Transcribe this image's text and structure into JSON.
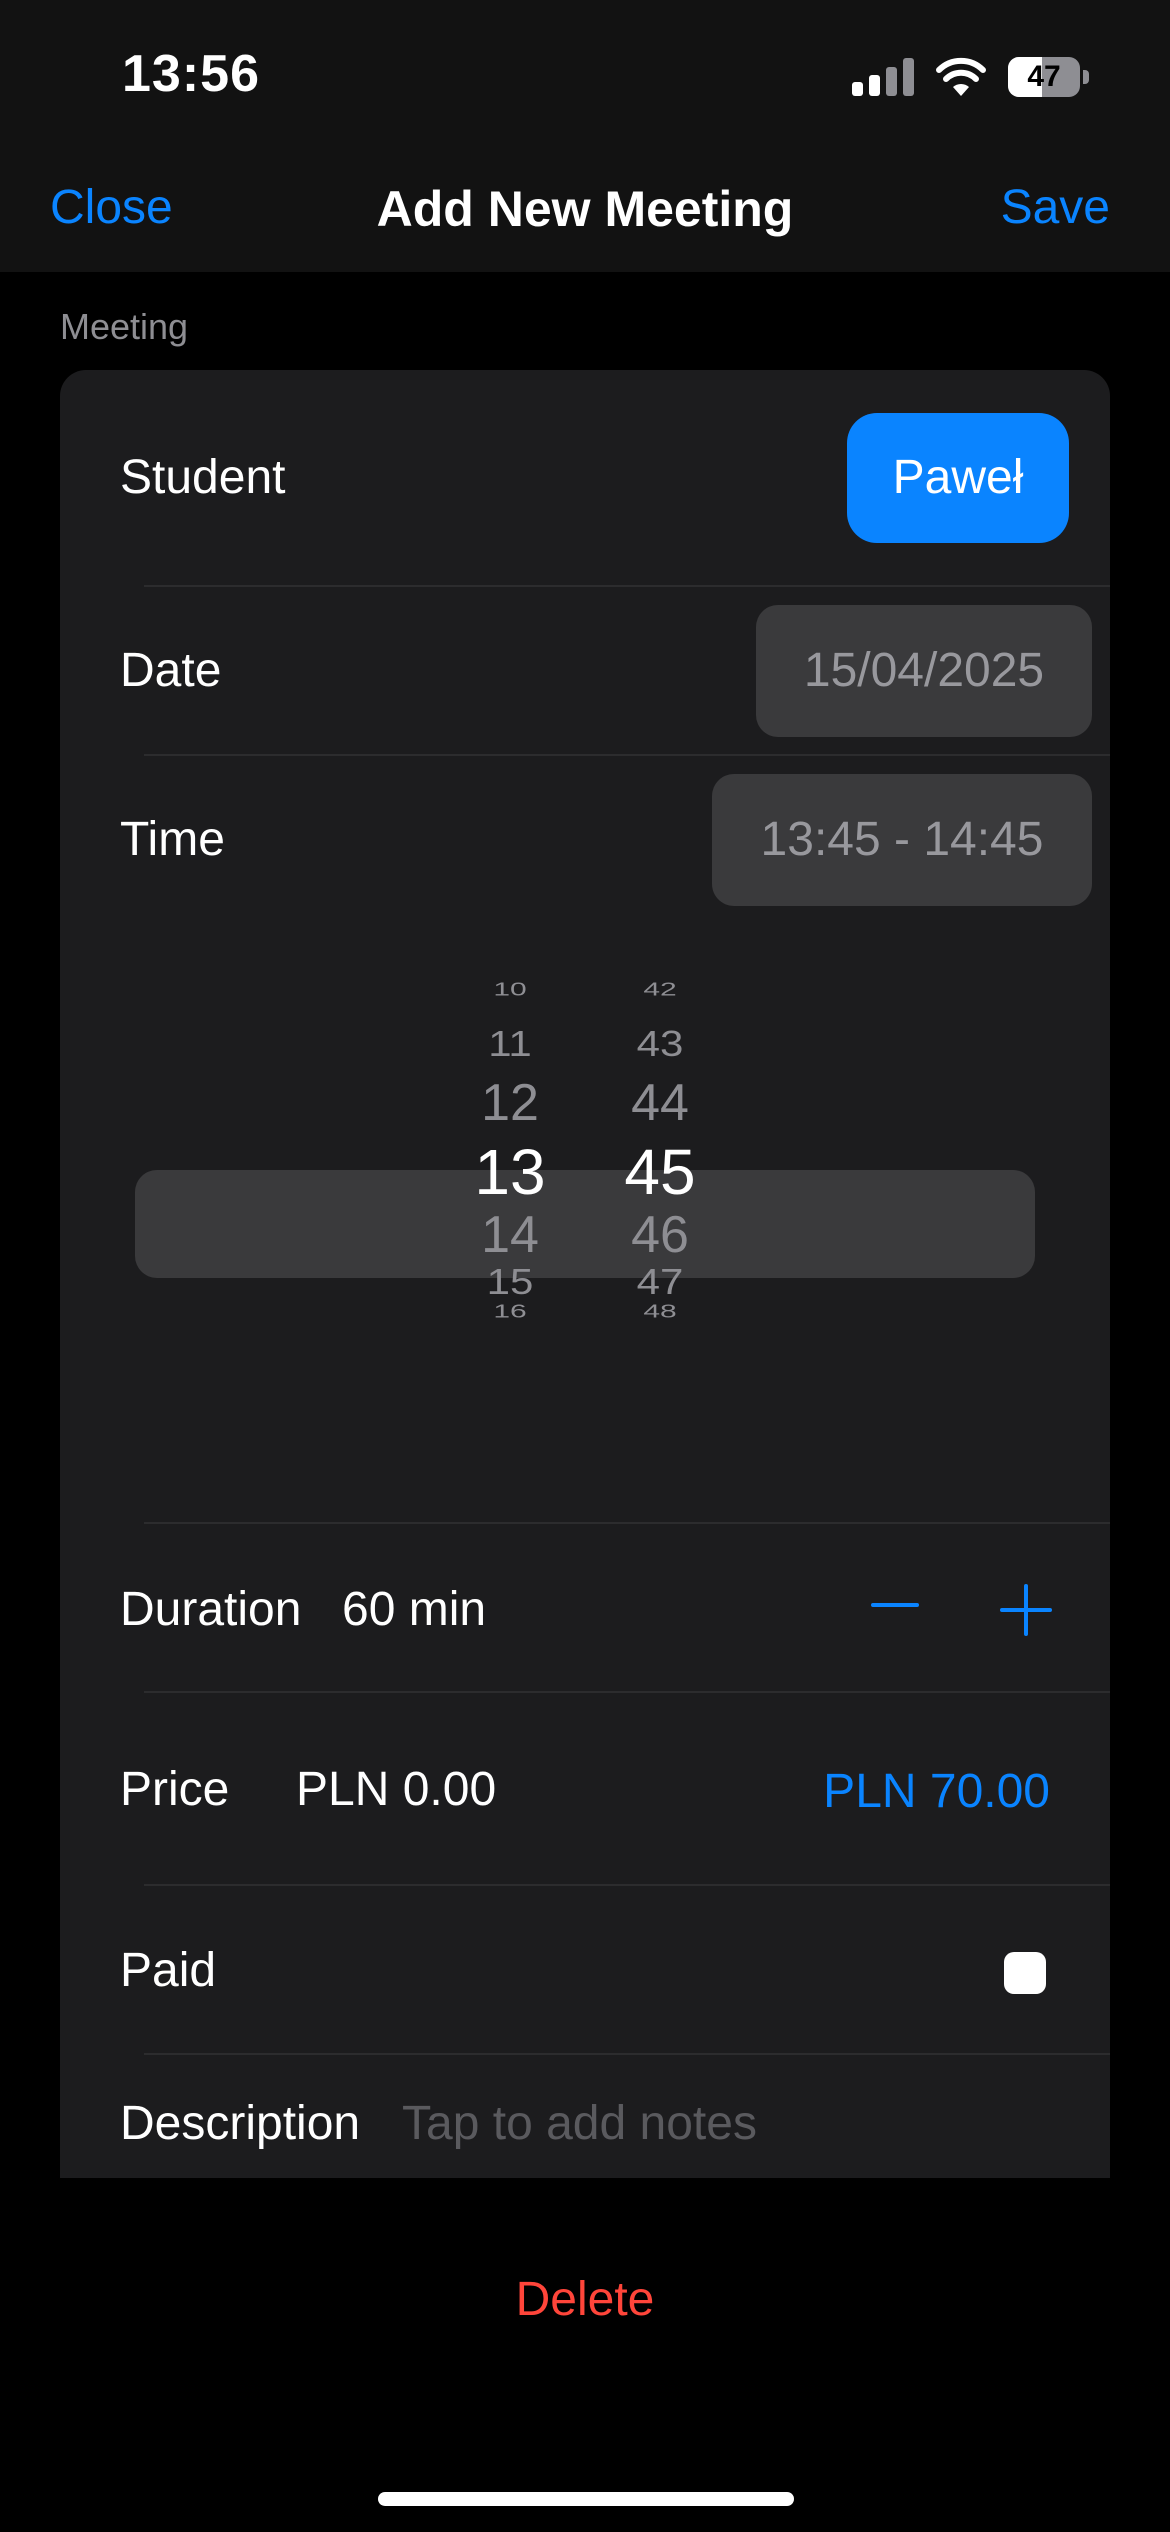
{
  "status_bar": {
    "time": "13:56",
    "battery": "47",
    "battery_percent": 47
  },
  "nav": {
    "close": "Close",
    "title": "Add New Meeting",
    "save": "Save"
  },
  "section_header": "Meeting",
  "student": {
    "label": "Student",
    "value": "Paweł"
  },
  "date": {
    "label": "Date",
    "value": "15/04/2025"
  },
  "time": {
    "label": "Time",
    "value": "13:45 - 14:45"
  },
  "picker": {
    "hours": [
      "10",
      "11",
      "12",
      "13",
      "14",
      "15",
      "16"
    ],
    "minutes": [
      "42",
      "43",
      "44",
      "45",
      "46",
      "47",
      "48"
    ],
    "selected_hour": "13",
    "selected_minute": "45"
  },
  "duration": {
    "label": "Duration",
    "value": "60 min"
  },
  "price": {
    "label": "Price",
    "value": "PLN 0.00",
    "suggested": "PLN 70.00"
  },
  "paid": {
    "label": "Paid",
    "checked": false
  },
  "description": {
    "label": "Description",
    "placeholder": "Tap to add notes"
  },
  "delete_label": "Delete",
  "colors": {
    "accent": "#0a84ff",
    "destructive": "#ff453a",
    "card": "#1c1c1e",
    "background": "#000000"
  }
}
